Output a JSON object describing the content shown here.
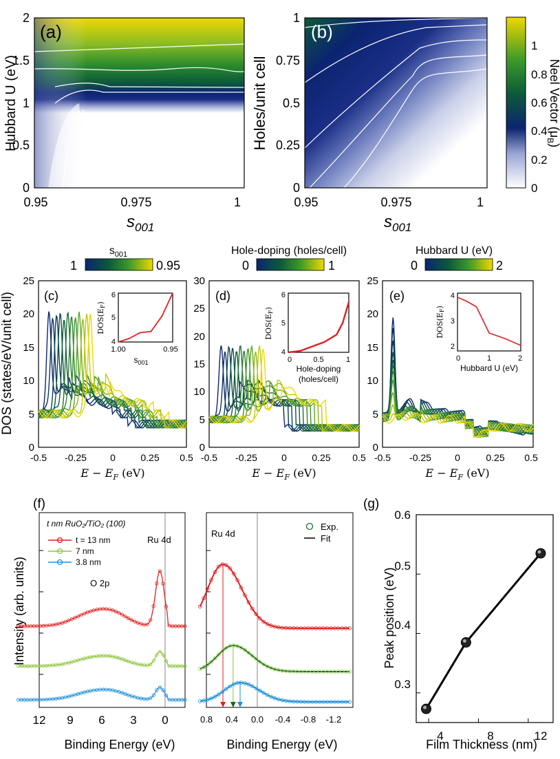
{
  "colors": {
    "red": "#e02020",
    "green": "#8cc43c",
    "blue": "#1e90d8",
    "darkgreen": "#136a1a",
    "navy": "#0a1f6e",
    "yellow": "#f0d800"
  },
  "panels": {
    "a": {
      "label": "(a)",
      "ylabel": "Hubbard U (eV)",
      "xlabel_main": "s",
      "xlabel_sub": "001",
      "xticks": [
        "0.95",
        "0.975",
        "1"
      ],
      "yticks": [
        "0",
        "0.5",
        "1",
        "1.5",
        "2"
      ]
    },
    "b": {
      "label": "(b)",
      "ylabel": "Holes/unit cell",
      "xlabel_main": "s",
      "xlabel_sub": "001",
      "xticks": [
        "0.95",
        "0.975",
        "1"
      ],
      "yticks": [
        "0",
        "0.25",
        "0.5",
        "0.75",
        "1"
      ]
    },
    "colorbar_ab": {
      "title": "Neel Vector (μ",
      "title_sub": "B",
      "title_end": ")",
      "ticks": [
        "0",
        "0.2",
        "0.4",
        "0.6",
        "0.8",
        "1"
      ]
    },
    "c": {
      "label": "(c)",
      "cb_title": "s",
      "cb_title_sub": "001",
      "cb_left": "1",
      "cb_right": "0.95",
      "inset_ylabel": "DOS(E",
      "inset_ylabel_sub": "F",
      "inset_xlabel": "s",
      "inset_xlabel_sub": "001",
      "inset_xticks": [
        "1.00",
        "0.95"
      ],
      "inset_yticks": [
        "4",
        "5",
        "6"
      ]
    },
    "d": {
      "label": "(d)",
      "cb_title": "Hole-doping (holes/cell)",
      "cb_left": "0",
      "cb_right": "1",
      "inset_xlabel": "Hole-doping",
      "inset_xlabel2": "(holes/cell)",
      "inset_xticks": [
        "0",
        "0.5",
        "1"
      ],
      "inset_yticks": [
        "4",
        "5",
        "6"
      ]
    },
    "e": {
      "label": "(e)",
      "cb_title": "Hubbard U (eV)",
      "cb_left": "0",
      "cb_right": "2",
      "inset_xlabel": "Hubbard U (eV)",
      "inset_xticks": [
        "0",
        "1",
        "2"
      ],
      "inset_yticks": [
        "2",
        "3",
        "4"
      ]
    },
    "dos_ylabel": "DOS (states/eV/unit cell)",
    "dos_xlabel": "E − E",
    "dos_xlabel_end": " (eV)",
    "dos_xticks": [
      "-0.5",
      "-0.25",
      "0",
      "0.25",
      "0.5"
    ],
    "c_yticks": [
      "0",
      "5",
      "10",
      "15",
      "20",
      "25"
    ],
    "d_yticks": [
      "0",
      "5",
      "10",
      "15",
      "20",
      "25",
      "30"
    ],
    "e_yticks": [
      "0",
      "5",
      "10",
      "15",
      "20",
      "25"
    ],
    "f": {
      "label": "(f)",
      "ylabel": "Intensity (arb. units)",
      "xlabel": "Binding Energy (eV)",
      "legend_title": "t nm RuO₂/TiO₂ (100)",
      "legend": [
        "t = 13 nm",
        "7 nm",
        "3.8 nm"
      ],
      "o2p": "O 2p",
      "ru4d": "Ru 4d",
      "xticks": [
        "12",
        "9",
        "6",
        "3",
        "0"
      ],
      "xticks2": [
        "0.8",
        "0.4",
        "0.0",
        "-0.4",
        "-0.8",
        "-1.2"
      ],
      "legend2": [
        "Exp.",
        "Fit"
      ]
    },
    "g": {
      "label": "(g)",
      "ylabel": "Peak position (eV)",
      "xlabel": "Film Thickness (nm)",
      "xticks": [
        "4",
        "8",
        "12"
      ],
      "yticks": [
        "0.3",
        "0.4",
        "0.5",
        "0.6"
      ]
    }
  },
  "chart_data": [
    {
      "type": "heatmap",
      "title": "(a)",
      "xlabel": "s001",
      "ylabel": "Hubbard U (eV)",
      "xlim": [
        0.95,
        1.0
      ],
      "ylim": [
        0,
        2
      ],
      "colorbar": "Neel Vector (μB)",
      "clim": [
        0,
        1.2
      ]
    },
    {
      "type": "heatmap",
      "title": "(b)",
      "xlabel": "s001",
      "ylabel": "Holes/unit cell",
      "xlim": [
        0.95,
        1.0
      ],
      "ylim": [
        0,
        1
      ]
    },
    {
      "type": "line",
      "title": "(c) inset",
      "xlabel": "s001",
      "ylabel": "DOS(EF)",
      "x": [
        1.0,
        0.99,
        0.98,
        0.97,
        0.96,
        0.95
      ],
      "y": [
        4.0,
        4.15,
        4.4,
        4.45,
        5.1,
        6.1
      ]
    },
    {
      "type": "line",
      "title": "(d) inset",
      "xlabel": "Hole-doping (holes/cell)",
      "ylabel": "DOS(EF)",
      "x": [
        0,
        0.2,
        0.4,
        0.6,
        0.8,
        0.9,
        1.0
      ],
      "y": [
        4.0,
        4.05,
        4.2,
        4.35,
        4.6,
        5.0,
        5.7
      ]
    },
    {
      "type": "line",
      "title": "(e) inset",
      "xlabel": "Hubbard U (eV)",
      "ylabel": "DOS(EF)",
      "x": [
        0,
        0.3,
        0.6,
        1.0,
        1.5,
        2.0
      ],
      "y": [
        4.15,
        4.0,
        3.8,
        2.85,
        2.65,
        2.4
      ]
    },
    {
      "type": "line",
      "title": "(g)",
      "xlabel": "Film Thickness (nm)",
      "ylabel": "Peak position (eV)",
      "x": [
        3.8,
        7,
        13
      ],
      "y": [
        0.273,
        0.385,
        0.535
      ],
      "xlim": [
        3,
        14
      ],
      "ylim": [
        0.25,
        0.6
      ]
    },
    {
      "type": "line",
      "title": "(f)",
      "xlabel": "Binding Energy (eV)",
      "series": [
        {
          "name": "t = 13 nm",
          "peak_ev": 0.54
        },
        {
          "name": "7 nm",
          "peak_ev": 0.38
        },
        {
          "name": "3.8 nm",
          "peak_ev": 0.27
        }
      ]
    }
  ]
}
